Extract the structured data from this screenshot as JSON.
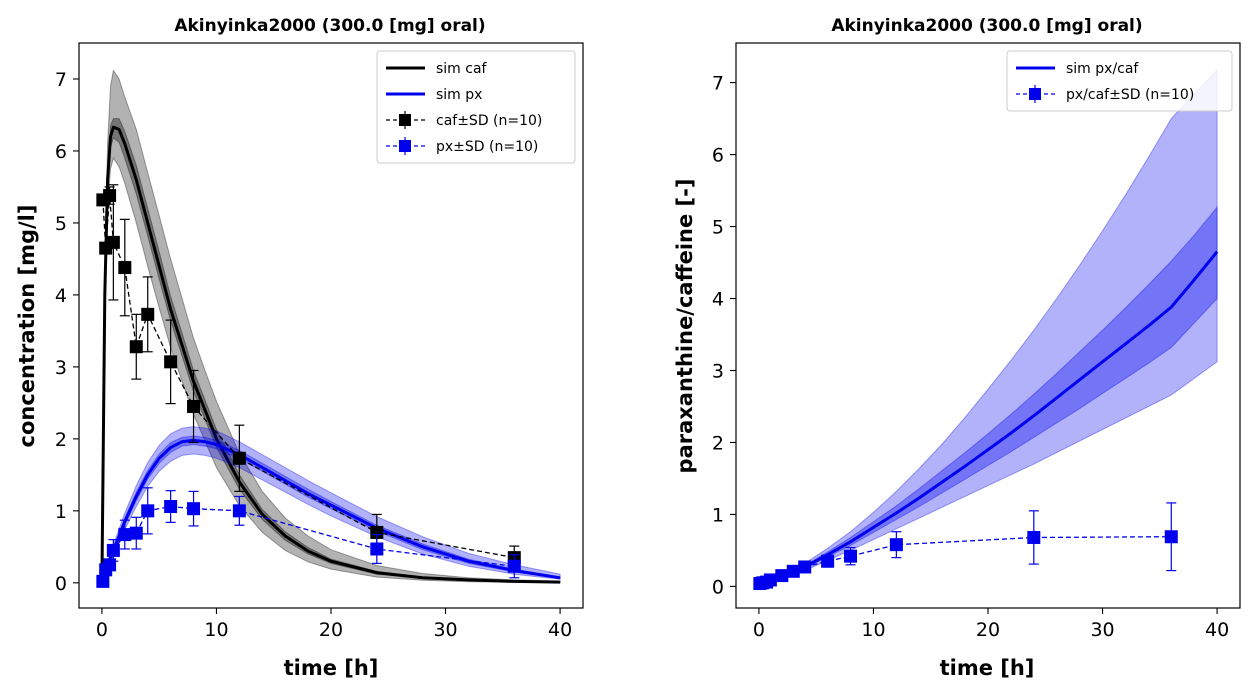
{
  "chart_data": [
    {
      "type": "line",
      "title": "Akinyinka2000 (300.0 [mg] oral)",
      "xlabel": "time [h]",
      "ylabel": "concentration [mg/l]",
      "xlim": [
        -2,
        42
      ],
      "ylim": [
        -0.35,
        7.5
      ],
      "xticks": [
        0,
        10,
        20,
        30,
        40
      ],
      "yticks": [
        0,
        1,
        2,
        3,
        4,
        5,
        6,
        7
      ],
      "legend_position": "top-right",
      "legend": [
        "sim caf",
        "sim px",
        "caf±SD (n=10)",
        "px±SD (n=10)"
      ],
      "sim_series": [
        {
          "name": "sim caf",
          "color": "#000000",
          "x": [
            0,
            0.25,
            0.5,
            0.75,
            1,
            1.5,
            2,
            3,
            4,
            5,
            6,
            7,
            8,
            9,
            10,
            12,
            14,
            16,
            18,
            20,
            24,
            28,
            32,
            36,
            40
          ],
          "mean": [
            0,
            4.0,
            5.6,
            6.2,
            6.33,
            6.3,
            6.1,
            5.6,
            5.0,
            4.4,
            3.8,
            3.3,
            2.8,
            2.4,
            2.0,
            1.4,
            0.95,
            0.65,
            0.44,
            0.3,
            0.14,
            0.07,
            0.04,
            0.02,
            0.01
          ],
          "inner_lo": [
            0,
            3.9,
            5.5,
            6.05,
            6.18,
            6.12,
            5.9,
            5.4,
            4.82,
            4.22,
            3.64,
            3.15,
            2.66,
            2.27,
            1.88,
            1.3,
            0.88,
            0.59,
            0.4,
            0.27,
            0.12,
            0.06,
            0.03,
            0.015,
            0.008
          ],
          "inner_hi": [
            0,
            4.1,
            5.7,
            6.35,
            6.45,
            6.45,
            6.27,
            5.8,
            5.2,
            4.6,
            3.98,
            3.47,
            2.95,
            2.54,
            2.13,
            1.5,
            1.02,
            0.71,
            0.49,
            0.33,
            0.16,
            0.08,
            0.045,
            0.025,
            0.012
          ],
          "outer_lo": [
            0,
            3.7,
            5.2,
            5.75,
            5.9,
            5.78,
            5.55,
            5.0,
            4.4,
            3.82,
            3.27,
            2.8,
            2.34,
            1.97,
            1.6,
            1.07,
            0.7,
            0.45,
            0.29,
            0.19,
            0.08,
            0.035,
            0.015,
            0.007,
            0.003
          ],
          "outer_hi": [
            0,
            4.3,
            6.1,
            6.9,
            7.12,
            7.0,
            6.75,
            6.3,
            5.7,
            5.1,
            4.5,
            3.95,
            3.4,
            2.95,
            2.52,
            1.8,
            1.27,
            0.9,
            0.65,
            0.46,
            0.24,
            0.13,
            0.07,
            0.04,
            0.025
          ]
        },
        {
          "name": "sim px",
          "color": "#0000ee",
          "x": [
            0,
            0.5,
            1,
            2,
            3,
            4,
            5,
            6,
            7,
            8,
            9,
            10,
            12,
            14,
            16,
            18,
            20,
            24,
            28,
            32,
            36,
            40
          ],
          "mean": [
            0,
            0.25,
            0.45,
            0.85,
            1.2,
            1.5,
            1.73,
            1.88,
            1.96,
            1.98,
            1.96,
            1.92,
            1.78,
            1.6,
            1.42,
            1.24,
            1.08,
            0.76,
            0.5,
            0.3,
            0.17,
            0.07
          ],
          "inner_lo": [
            0,
            0.23,
            0.42,
            0.8,
            1.14,
            1.44,
            1.66,
            1.81,
            1.9,
            1.92,
            1.9,
            1.86,
            1.72,
            1.55,
            1.37,
            1.19,
            1.03,
            0.72,
            0.46,
            0.27,
            0.15,
            0.06
          ],
          "inner_hi": [
            0,
            0.27,
            0.48,
            0.9,
            1.26,
            1.56,
            1.79,
            1.95,
            2.02,
            2.04,
            2.02,
            1.98,
            1.84,
            1.66,
            1.48,
            1.3,
            1.13,
            0.8,
            0.54,
            0.33,
            0.19,
            0.08
          ],
          "outer_lo": [
            0,
            0.2,
            0.38,
            0.74,
            1.06,
            1.34,
            1.55,
            1.69,
            1.77,
            1.79,
            1.77,
            1.73,
            1.6,
            1.43,
            1.26,
            1.09,
            0.93,
            0.64,
            0.4,
            0.23,
            0.12,
            0.05
          ],
          "outer_hi": [
            0,
            0.3,
            0.53,
            0.97,
            1.35,
            1.67,
            1.91,
            2.07,
            2.15,
            2.17,
            2.15,
            2.11,
            1.96,
            1.78,
            1.6,
            1.42,
            1.25,
            0.92,
            0.64,
            0.41,
            0.25,
            0.12
          ]
        }
      ],
      "data_series": [
        {
          "name": "caf±SD (n=10)",
          "color": "#000000",
          "x": [
            0.083,
            0.33,
            0.67,
            1,
            2,
            3,
            4,
            6,
            8,
            12,
            24,
            36
          ],
          "y": [
            5.32,
            4.65,
            5.38,
            4.73,
            4.38,
            3.28,
            3.73,
            3.07,
            2.45,
            1.73,
            0.7,
            0.35
          ],
          "sd": [
            0,
            0,
            0.12,
            0.8,
            0.67,
            0.45,
            0.52,
            0.58,
            0.5,
            0.46,
            0.25,
            0.16
          ]
        },
        {
          "name": "px±SD (n=10)",
          "color": "#0000ee",
          "x": [
            0.083,
            0.33,
            0.67,
            1,
            2,
            3,
            4,
            6,
            8,
            12,
            24,
            36
          ],
          "y": [
            0.02,
            0.18,
            0.25,
            0.45,
            0.67,
            0.69,
            1.0,
            1.06,
            1.03,
            1.0,
            0.47,
            0.23
          ],
          "sd": [
            0,
            0.05,
            0.08,
            0.15,
            0.2,
            0.22,
            0.32,
            0.22,
            0.24,
            0.2,
            0.2,
            0.16
          ]
        }
      ]
    },
    {
      "type": "line",
      "title": "Akinyinka2000 (300.0 [mg] oral)",
      "xlabel": "time [h]",
      "ylabel": "paraxanthine/caffeine [-]",
      "xlim": [
        -2,
        42
      ],
      "ylim": [
        -0.3,
        7.55
      ],
      "xticks": [
        0,
        10,
        20,
        30,
        40
      ],
      "yticks": [
        0,
        1,
        2,
        3,
        4,
        5,
        6,
        7
      ],
      "legend_position": "top-right",
      "legend": [
        "sim px/caf",
        "px/caf±SD (n=10)"
      ],
      "sim_series": [
        {
          "name": "sim px/caf",
          "color": "#0000ee",
          "x": [
            0,
            2,
            4,
            6,
            8,
            10,
            12,
            14,
            16,
            18,
            20,
            22,
            24,
            26,
            28,
            30,
            32,
            34,
            36,
            38,
            40
          ],
          "mean": [
            0,
            0.12,
            0.27,
            0.44,
            0.62,
            0.82,
            1.02,
            1.23,
            1.45,
            1.67,
            1.9,
            2.13,
            2.37,
            2.62,
            2.87,
            3.12,
            3.37,
            3.62,
            3.88,
            4.26,
            4.65
          ],
          "inner_lo": [
            0,
            0.11,
            0.25,
            0.41,
            0.57,
            0.75,
            0.93,
            1.11,
            1.3,
            1.49,
            1.68,
            1.87,
            2.07,
            2.27,
            2.47,
            2.68,
            2.89,
            3.1,
            3.32,
            3.66,
            4.0
          ],
          "inner_hi": [
            0,
            0.13,
            0.29,
            0.48,
            0.68,
            0.9,
            1.12,
            1.36,
            1.61,
            1.86,
            2.12,
            2.39,
            2.67,
            2.96,
            3.26,
            3.56,
            3.87,
            4.19,
            4.52,
            4.88,
            5.27
          ],
          "outer_lo": [
            0,
            0.1,
            0.22,
            0.36,
            0.5,
            0.65,
            0.8,
            0.95,
            1.1,
            1.25,
            1.4,
            1.55,
            1.7,
            1.86,
            2.02,
            2.18,
            2.34,
            2.5,
            2.66,
            2.89,
            3.12
          ],
          "outer_hi": [
            0,
            0.14,
            0.32,
            0.53,
            0.76,
            1.03,
            1.32,
            1.64,
            1.98,
            2.35,
            2.74,
            3.14,
            3.56,
            4.0,
            4.46,
            4.94,
            5.44,
            5.96,
            6.5,
            6.84,
            7.18
          ]
        }
      ],
      "data_series": [
        {
          "name": "px/caf±SD (n=10)",
          "color": "#0000ee",
          "x": [
            0.083,
            0.33,
            0.67,
            1,
            2,
            3,
            4,
            6,
            8,
            12,
            24,
            36
          ],
          "y": [
            0.04,
            0.05,
            0.06,
            0.09,
            0.15,
            0.21,
            0.27,
            0.35,
            0.42,
            0.58,
            0.68,
            0.69
          ],
          "sd": [
            0,
            0.02,
            0.02,
            0.03,
            0.05,
            0.06,
            0.07,
            0.08,
            0.12,
            0.18,
            0.37,
            0.47
          ]
        }
      ]
    }
  ]
}
